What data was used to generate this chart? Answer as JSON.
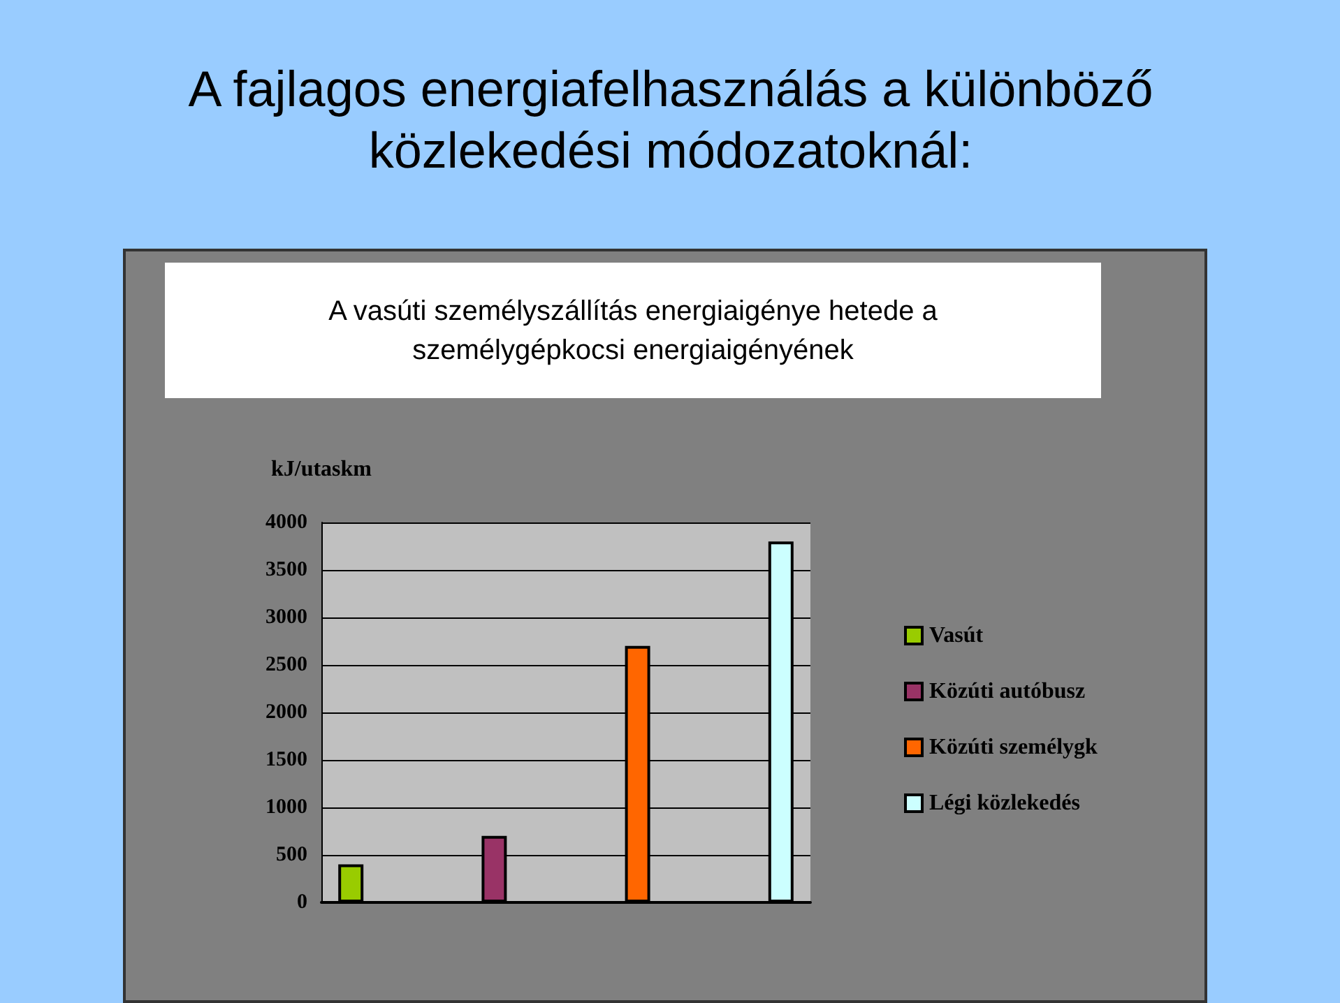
{
  "chart_data": {
    "type": "bar",
    "title": "A fajlagos energiafelhasználás a különböző közlekedési módozatoknál:",
    "subtitle": "A vasúti személyszállítás energiaigénye hetede a személygépkocsi energiaigényének",
    "ylabel": "kJ/utaskm",
    "categories": [
      null
    ],
    "series": [
      {
        "name": "Vasút",
        "color": "#99cc00",
        "values": [
          400
        ]
      },
      {
        "name": "Közúti autóbusz",
        "color": "#993366",
        "values": [
          700
        ]
      },
      {
        "name": "Közúti személygk",
        "color": "#ff6600",
        "values": [
          2700
        ]
      },
      {
        "name": "Légi közlekedés",
        "color": "#ccffff",
        "values": [
          3800
        ]
      }
    ],
    "ylim": [
      0,
      4000
    ],
    "yticks": [
      0,
      500,
      1000,
      1500,
      2000,
      2500,
      3000,
      3500,
      4000
    ],
    "grid": "y",
    "legend": "right"
  }
}
